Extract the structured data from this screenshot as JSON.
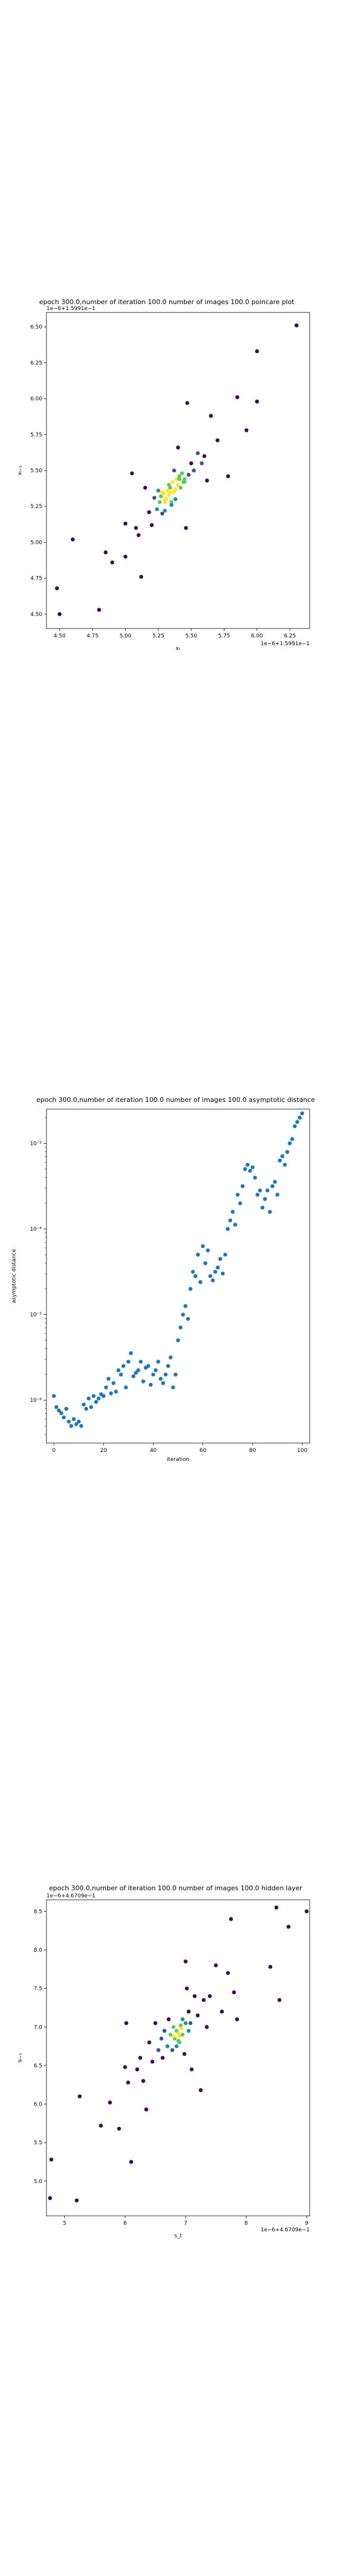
{
  "chart_data": [
    {
      "type": "scatter",
      "title": "epoch 300.0,number of iteration 100.0 number of images 100.0 poincare plot",
      "xlabel": "xₜ",
      "ylabel": "xₜ₊₁",
      "x_offset_label": "1e−6+1.5991e−1",
      "y_offset_label": "1e−6+1.5991e−1",
      "xlim": [
        4.4,
        6.4
      ],
      "ylim": [
        4.4,
        6.6
      ],
      "x_ticks": [
        "4.50",
        "4.75",
        "5.00",
        "5.25",
        "5.50",
        "5.75",
        "6.00",
        "6.25"
      ],
      "y_ticks": [
        "4.50",
        "4.75",
        "5.00",
        "5.25",
        "5.50",
        "5.75",
        "6.00",
        "6.25",
        "6.50"
      ],
      "color_by_density": true,
      "colormap": [
        "#440154",
        "#3b528b",
        "#21918c",
        "#5ec962",
        "#fde725"
      ],
      "x": [
        4.48,
        4.5,
        4.6,
        4.8,
        4.85,
        4.9,
        5.0,
        5.0,
        5.05,
        5.08,
        5.1,
        5.12,
        5.15,
        5.18,
        5.2,
        5.22,
        5.24,
        5.25,
        5.26,
        5.27,
        5.28,
        5.29,
        5.3,
        5.3,
        5.31,
        5.32,
        5.33,
        5.33,
        5.34,
        5.35,
        5.35,
        5.36,
        5.37,
        5.37,
        5.38,
        5.39,
        5.4,
        5.4,
        5.41,
        5.42,
        5.43,
        5.44,
        5.45,
        5.46,
        5.47,
        5.48,
        5.5,
        5.52,
        5.55,
        5.58,
        5.6,
        5.62,
        5.65,
        5.7,
        5.78,
        5.85,
        5.92,
        6.0,
        6.0,
        6.3,
        5.35,
        5.45,
        5.28,
        5.41,
        5.3,
        5.38
      ],
      "y": [
        4.68,
        4.5,
        5.02,
        4.53,
        4.93,
        4.86,
        5.13,
        4.9,
        5.48,
        5.1,
        5.05,
        4.76,
        5.38,
        5.21,
        5.12,
        5.31,
        5.23,
        5.36,
        5.28,
        5.32,
        5.2,
        5.34,
        5.28,
        5.22,
        5.3,
        5.36,
        5.33,
        5.4,
        5.38,
        5.35,
        5.28,
        5.42,
        5.35,
        5.5,
        5.3,
        5.44,
        5.4,
        5.66,
        5.46,
        5.38,
        5.48,
        5.42,
        5.44,
        5.1,
        5.97,
        5.47,
        5.55,
        5.5,
        5.62,
        5.55,
        5.6,
        5.43,
        5.88,
        5.71,
        5.46,
        6.01,
        5.78,
        6.33,
        5.98,
        6.51,
        5.26,
        5.42,
        5.35,
        5.44,
        5.3,
        5.37
      ]
    },
    {
      "type": "scatter",
      "title": "epoch 300.0,number of iteration 100.0  number of images 100.0 asymptotic distance",
      "xlabel": "iteration",
      "ylabel": "asymptotic distance",
      "yscale": "log",
      "xlim": [
        -3,
        103
      ],
      "ylim_exp": [
        -6.5,
        -2.6
      ],
      "x_ticks": [
        "0",
        "20",
        "40",
        "60",
        "80",
        "100"
      ],
      "y_ticks": [
        "10⁻⁶",
        "10⁻⁵",
        "10⁻⁴",
        "10⁻³"
      ],
      "color": "#1f77b4",
      "x": [
        0,
        1,
        2,
        3,
        4,
        5,
        6,
        7,
        8,
        9,
        10,
        11,
        12,
        13,
        14,
        15,
        16,
        17,
        18,
        19,
        20,
        21,
        22,
        23,
        24,
        25,
        26,
        27,
        28,
        29,
        30,
        31,
        32,
        33,
        34,
        35,
        36,
        37,
        38,
        39,
        40,
        41,
        42,
        43,
        44,
        45,
        46,
        47,
        48,
        49,
        50,
        51,
        52,
        53,
        54,
        55,
        56,
        57,
        58,
        59,
        60,
        61,
        62,
        63,
        64,
        65,
        66,
        67,
        68,
        69,
        70,
        71,
        72,
        73,
        74,
        75,
        76,
        77,
        78,
        79,
        80,
        81,
        82,
        83,
        84,
        85,
        86,
        87,
        88,
        89,
        90,
        91,
        92,
        93,
        94,
        95,
        96,
        97,
        98,
        99,
        100
      ],
      "y_exp": [
        -5.95,
        -6.08,
        -6.12,
        -6.15,
        -6.2,
        -6.1,
        -6.25,
        -6.3,
        -6.22,
        -6.28,
        -6.25,
        -6.3,
        -6.05,
        -6.1,
        -5.98,
        -6.08,
        -5.95,
        -6.02,
        -5.98,
        -5.93,
        -5.95,
        -5.85,
        -5.75,
        -5.92,
        -5.8,
        -5.9,
        -5.65,
        -5.7,
        -5.6,
        -5.85,
        -5.55,
        -5.45,
        -5.72,
        -5.68,
        -5.65,
        -5.55,
        -5.78,
        -5.62,
        -5.6,
        -5.82,
        -5.7,
        -5.65,
        -5.55,
        -5.75,
        -5.8,
        -5.7,
        -5.6,
        -5.5,
        -5.85,
        -5.7,
        -5.3,
        -5.15,
        -5.0,
        -4.9,
        -5.05,
        -4.7,
        -4.5,
        -4.55,
        -4.3,
        -4.62,
        -4.2,
        -4.4,
        -4.25,
        -4.55,
        -4.6,
        -4.5,
        -4.45,
        -4.35,
        -4.52,
        -4.3,
        -4.0,
        -3.9,
        -3.8,
        -3.95,
        -3.6,
        -3.7,
        -3.5,
        -3.3,
        -3.25,
        -3.32,
        -3.28,
        -3.4,
        -3.6,
        -3.55,
        -3.75,
        -3.65,
        -3.55,
        -3.8,
        -3.5,
        -3.45,
        -3.6,
        -3.2,
        -3.15,
        -3.25,
        -3.1,
        -3.0,
        -2.95,
        -2.8,
        -2.75,
        -2.7,
        -2.65
      ]
    },
    {
      "type": "scatter",
      "title": "epoch 300.0,number of iteration 100.0  number of images 100.0 hidden layer",
      "xlabel": "s_t",
      "ylabel": "sₜ₊₁",
      "x_offset_label": "1e−6+4.6709e−1",
      "y_offset_label": "1e−6+4.6709e−1",
      "xlim": [
        4.7,
        9.05
      ],
      "ylim": [
        4.55,
        8.65
      ],
      "x_ticks": [
        "5",
        "6",
        "7",
        "8",
        "9"
      ],
      "y_ticks": [
        "5.0",
        "5.5",
        "6.0",
        "6.5",
        "7.0",
        "7.5",
        "8.0",
        "8.5"
      ],
      "color_by_density": true,
      "colormap": [
        "#440154",
        "#3b528b",
        "#21918c",
        "#5ec962",
        "#fde725"
      ],
      "x": [
        4.78,
        4.76,
        5.2,
        5.25,
        5.6,
        5.75,
        5.9,
        6.0,
        6.02,
        6.05,
        6.1,
        6.2,
        6.25,
        6.3,
        6.35,
        6.4,
        6.45,
        6.5,
        6.55,
        6.6,
        6.62,
        6.65,
        6.7,
        6.72,
        6.75,
        6.78,
        6.8,
        6.82,
        6.85,
        6.88,
        6.9,
        6.92,
        6.95,
        6.98,
        7.0,
        7.02,
        7.05,
        7.08,
        7.1,
        7.15,
        7.2,
        7.25,
        7.3,
        7.35,
        7.4,
        7.5,
        7.6,
        7.7,
        7.75,
        7.8,
        7.85,
        8.4,
        8.5,
        8.55,
        8.7,
        9.0,
        6.88,
        6.95,
        6.85,
        7.0,
        6.9,
        6.8,
        7.05,
        6.93
      ],
      "y": [
        5.28,
        4.78,
        4.75,
        6.1,
        5.72,
        6.02,
        5.68,
        6.48,
        7.05,
        6.28,
        5.25,
        6.45,
        6.6,
        6.3,
        5.93,
        6.8,
        6.55,
        7.05,
        6.7,
        6.85,
        6.6,
        6.95,
        6.75,
        7.1,
        6.9,
        6.7,
        7.0,
        6.85,
        6.95,
        6.92,
        6.88,
        7.02,
        7.1,
        6.65,
        7.85,
        7.5,
        7.2,
        7.05,
        6.45,
        7.4,
        7.15,
        6.18,
        7.35,
        7.0,
        7.4,
        7.8,
        7.2,
        7.7,
        8.4,
        7.45,
        7.1,
        7.78,
        8.55,
        7.35,
        8.3,
        8.5,
        6.82,
        6.9,
        6.75,
        7.05,
        6.8,
        6.88,
        6.95,
        6.98
      ]
    }
  ]
}
